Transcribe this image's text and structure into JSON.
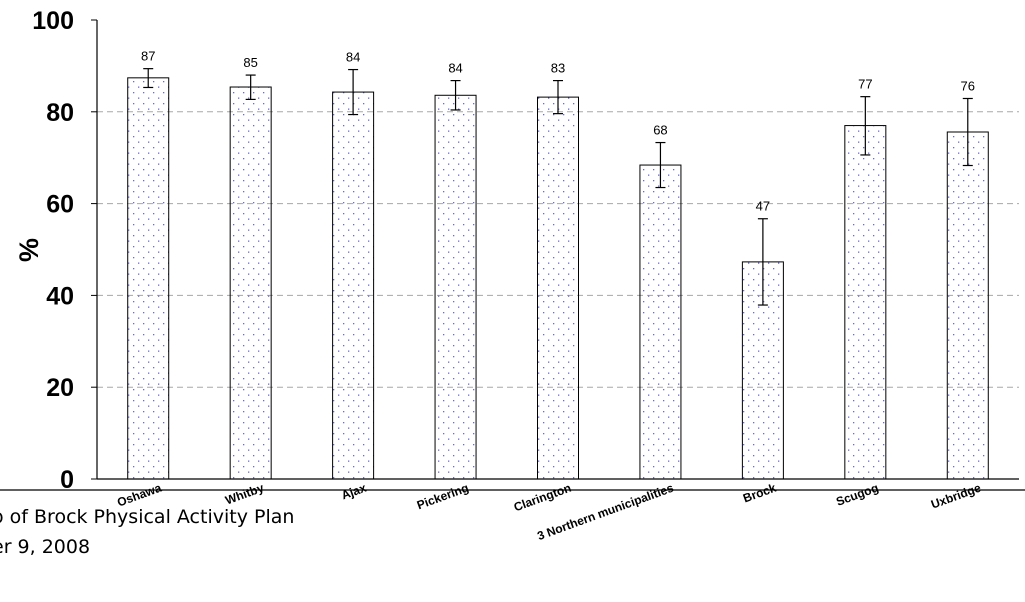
{
  "footer": {
    "line1": "o of Brock Physical Activity Plan",
    "line2": "er 9, 2008"
  },
  "chart_data": {
    "type": "bar",
    "title": "",
    "xlabel": "",
    "ylabel": "%",
    "ylim": [
      0,
      100
    ],
    "yticks": [
      0,
      20,
      40,
      60,
      80,
      100
    ],
    "grid": true,
    "categories": [
      "Oshawa",
      "Whitby",
      "Ajax",
      "Pickering",
      "Clarington",
      "3 Northern municipalities",
      "Brock",
      "Scugog",
      "Uxbridge"
    ],
    "values": [
      87.4,
      85.4,
      84.3,
      83.6,
      83.2,
      68.4,
      47.3,
      77.0,
      75.6
    ],
    "data_labels": [
      "87",
      "85",
      "84",
      "84",
      "83",
      "68",
      "47",
      "77",
      "76"
    ],
    "error_low": [
      85.3,
      82.7,
      79.4,
      80.4,
      79.6,
      63.5,
      37.9,
      70.6,
      68.3
    ],
    "error_high": [
      89.4,
      88.0,
      89.2,
      86.8,
      86.8,
      73.3,
      56.7,
      83.3,
      82.9
    ],
    "colors": {
      "bar_fill": "#ffffff",
      "bar_dots": "#6a6ad0",
      "bar_edge": "#000000",
      "grid": "#a8a8a8"
    }
  }
}
